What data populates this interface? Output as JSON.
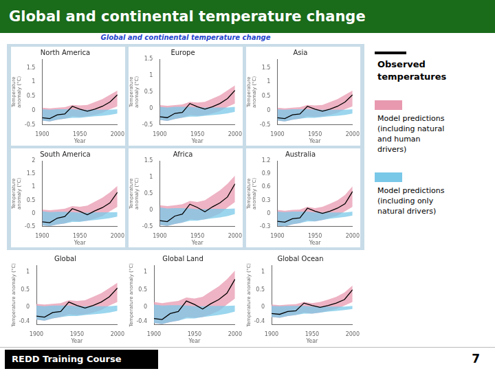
{
  "title": "Global and continental temperature change",
  "subtitle": "Global and continental temperature change",
  "annotations": [
    "REDD Training Course",
    "7"
  ],
  "chart_data": [
    {
      "type": "line",
      "title": "North America",
      "x_label": "Year",
      "y_label": "Temperature\nanomaly (°C)",
      "x": [
        1900,
        1910,
        1920,
        1930,
        1940,
        1950,
        1960,
        1970,
        1980,
        1990,
        2000
      ],
      "xlim": [
        1900,
        2000
      ],
      "xticks": [
        1900,
        1950,
        2000
      ],
      "ylim": [
        -0.5,
        1.8
      ],
      "yticks": [
        -0.5,
        0,
        0.5,
        1,
        1.5
      ],
      "grid": false,
      "series": [
        {
          "name": "Observed\ntemperatures",
          "color": "#000000",
          "values": [
            -0.25,
            -0.28,
            -0.15,
            -0.12,
            0.15,
            0.05,
            -0.02,
            0.05,
            0.15,
            0.3,
            0.55
          ]
        },
        {
          "name": "Model predictions\n(including natural\nand human\ndrivers)",
          "type": "band",
          "color": "#e899b0",
          "lower": [
            -0.35,
            -0.38,
            -0.32,
            -0.28,
            -0.2,
            -0.22,
            -0.2,
            -0.15,
            -0.08,
            0.05,
            0.15
          ],
          "upper": [
            0.1,
            0.08,
            0.1,
            0.12,
            0.2,
            0.18,
            0.2,
            0.3,
            0.4,
            0.55,
            0.7
          ]
        },
        {
          "name": "Model predictions\n(including only\nnatural drivers)",
          "type": "band",
          "color": "#7ac8e8",
          "lower": [
            -0.35,
            -0.38,
            -0.32,
            -0.28,
            -0.25,
            -0.25,
            -0.22,
            -0.2,
            -0.18,
            -0.15,
            -0.1
          ],
          "upper": [
            0.05,
            0.03,
            0.05,
            0.05,
            0.05,
            0.03,
            0.03,
            0.03,
            0.03,
            0.03,
            0.05
          ]
        }
      ]
    },
    {
      "type": "line",
      "title": "Europe",
      "x_label": "Year",
      "y_label": "Temperature\nanomaly (°C)",
      "x": [
        1900,
        1910,
        1920,
        1930,
        1940,
        1950,
        1960,
        1970,
        1980,
        1990,
        2000
      ],
      "xlim": [
        1900,
        2000
      ],
      "xticks": [
        1900,
        1950,
        2000
      ],
      "ylim": [
        -0.5,
        1.5
      ],
      "yticks": [
        -0.5,
        0,
        0.5,
        1,
        1.5
      ],
      "grid": false,
      "series": [
        {
          "name": "Observed\ntemperatures",
          "color": "#000000",
          "values": [
            -0.25,
            -0.28,
            -0.15,
            -0.12,
            0.15,
            0.05,
            -0.02,
            0.05,
            0.15,
            0.3,
            0.55
          ]
        },
        {
          "name": "Model predictions\n(including natural\nand human\ndrivers)",
          "type": "band",
          "color": "#e899b0",
          "lower": [
            -0.35,
            -0.38,
            -0.32,
            -0.28,
            -0.2,
            -0.22,
            -0.2,
            -0.15,
            -0.08,
            0.05,
            0.15
          ],
          "upper": [
            0.1,
            0.08,
            0.1,
            0.12,
            0.2,
            0.18,
            0.2,
            0.3,
            0.4,
            0.55,
            0.7
          ]
        },
        {
          "name": "Model predictions\n(including only\nnatural drivers)",
          "type": "band",
          "color": "#7ac8e8",
          "lower": [
            -0.35,
            -0.38,
            -0.32,
            -0.28,
            -0.25,
            -0.25,
            -0.22,
            -0.2,
            -0.18,
            -0.15,
            -0.1
          ],
          "upper": [
            0.05,
            0.03,
            0.05,
            0.05,
            0.05,
            0.03,
            0.03,
            0.03,
            0.03,
            0.03,
            0.05
          ]
        }
      ]
    },
    {
      "type": "line",
      "title": "Asia",
      "x_label": "Year",
      "y_label": "Temperature\nanomaly (°C)",
      "x": [
        1900,
        1910,
        1920,
        1930,
        1940,
        1950,
        1960,
        1970,
        1980,
        1990,
        2000
      ],
      "xlim": [
        1900,
        2000
      ],
      "xticks": [
        1900,
        1950,
        2000
      ],
      "ylim": [
        -0.5,
        1.8
      ],
      "yticks": [
        -0.5,
        0,
        0.5,
        1,
        1.5
      ],
      "grid": false,
      "series": [
        {
          "name": "Observed\ntemperatures",
          "color": "#000000",
          "values": [
            -0.25,
            -0.28,
            -0.15,
            -0.12,
            0.15,
            0.05,
            -0.02,
            0.05,
            0.15,
            0.3,
            0.55
          ]
        },
        {
          "name": "Model predictions\n(including natural\nand human\ndrivers)",
          "type": "band",
          "color": "#e899b0",
          "lower": [
            -0.35,
            -0.38,
            -0.32,
            -0.28,
            -0.2,
            -0.22,
            -0.2,
            -0.15,
            -0.08,
            0.05,
            0.15
          ],
          "upper": [
            0.1,
            0.08,
            0.1,
            0.12,
            0.2,
            0.18,
            0.2,
            0.3,
            0.4,
            0.55,
            0.7
          ]
        },
        {
          "name": "Model predictions\n(including only\nnatural drivers)",
          "type": "band",
          "color": "#7ac8e8",
          "lower": [
            -0.35,
            -0.38,
            -0.32,
            -0.28,
            -0.25,
            -0.25,
            -0.22,
            -0.2,
            -0.18,
            -0.15,
            -0.1
          ],
          "upper": [
            0.05,
            0.03,
            0.05,
            0.05,
            0.05,
            0.03,
            0.03,
            0.03,
            0.03,
            0.03,
            0.05
          ]
        }
      ]
    },
    {
      "type": "line",
      "title": "South America",
      "x_label": "Year",
      "y_label": "Temperature\nanomaly (°C)",
      "x": [
        1900,
        1910,
        1920,
        1930,
        1940,
        1950,
        1960,
        1970,
        1980,
        1990,
        2000
      ],
      "xlim": [
        1900,
        2000
      ],
      "xticks": [
        1900,
        1950,
        2000
      ],
      "ylim": [
        -0.5,
        2.0
      ],
      "yticks": [
        -0.5,
        0,
        0.5,
        1,
        1.5,
        2
      ],
      "grid": false,
      "series": [
        {
          "name": "Observed\ntemperatures",
          "color": "#000000",
          "values": [
            -0.32,
            -0.35,
            -0.18,
            -0.12,
            0.18,
            0.08,
            -0.05,
            0.1,
            0.22,
            0.4,
            0.8
          ]
        },
        {
          "name": "Model predictions\n(including natural\nand human\ndrivers)",
          "type": "band",
          "color": "#e899b0",
          "lower": [
            -0.45,
            -0.48,
            -0.42,
            -0.38,
            -0.28,
            -0.3,
            -0.28,
            -0.2,
            -0.1,
            0.08,
            0.25
          ],
          "upper": [
            0.15,
            0.12,
            0.15,
            0.18,
            0.28,
            0.25,
            0.3,
            0.45,
            0.6,
            0.8,
            1.05
          ]
        },
        {
          "name": "Model predictions\n(including only\nnatural drivers)",
          "type": "band",
          "color": "#7ac8e8",
          "lower": [
            -0.45,
            -0.48,
            -0.42,
            -0.38,
            -0.32,
            -0.32,
            -0.28,
            -0.25,
            -0.22,
            -0.18,
            -0.12
          ],
          "upper": [
            0.08,
            0.05,
            0.06,
            0.06,
            0.05,
            0.03,
            0.03,
            0.04,
            0.04,
            0.04,
            0.05
          ]
        }
      ]
    },
    {
      "type": "line",
      "title": "Africa",
      "x_label": "Year",
      "y_label": "Temperature\nanomaly (°C)",
      "x": [
        1900,
        1910,
        1920,
        1930,
        1940,
        1950,
        1960,
        1970,
        1980,
        1990,
        2000
      ],
      "xlim": [
        1900,
        2000
      ],
      "xticks": [
        1900,
        1950,
        2000
      ],
      "ylim": [
        -0.5,
        1.5
      ],
      "yticks": [
        -0.5,
        0,
        0.5,
        1,
        1.5
      ],
      "grid": false,
      "series": [
        {
          "name": "Observed\ntemperatures",
          "color": "#000000",
          "values": [
            -0.32,
            -0.35,
            -0.18,
            -0.12,
            0.18,
            0.08,
            -0.05,
            0.1,
            0.22,
            0.4,
            0.8
          ]
        },
        {
          "name": "Model predictions\n(including natural\nand human\ndrivers)",
          "type": "band",
          "color": "#e899b0",
          "lower": [
            -0.45,
            -0.48,
            -0.42,
            -0.38,
            -0.28,
            -0.3,
            -0.28,
            -0.2,
            -0.1,
            0.08,
            0.25
          ],
          "upper": [
            0.15,
            0.12,
            0.15,
            0.18,
            0.28,
            0.25,
            0.3,
            0.45,
            0.6,
            0.8,
            1.05
          ]
        },
        {
          "name": "Model predictions\n(including only\nnatural drivers)",
          "type": "band",
          "color": "#7ac8e8",
          "lower": [
            -0.45,
            -0.48,
            -0.42,
            -0.38,
            -0.32,
            -0.32,
            -0.28,
            -0.25,
            -0.22,
            -0.18,
            -0.12
          ],
          "upper": [
            0.08,
            0.05,
            0.06,
            0.06,
            0.05,
            0.03,
            0.03,
            0.04,
            0.04,
            0.04,
            0.05
          ]
        }
      ]
    },
    {
      "type": "line",
      "title": "Australia",
      "x_label": "Year",
      "y_label": "Temperature\nanomaly (°C)",
      "x": [
        1900,
        1910,
        1920,
        1930,
        1940,
        1950,
        1960,
        1970,
        1980,
        1990,
        2000
      ],
      "xlim": [
        1900,
        2000
      ],
      "xticks": [
        1900,
        1950,
        2000
      ],
      "ylim": [
        -0.3,
        1.2
      ],
      "yticks": [
        -0.3,
        0,
        0.3,
        0.6,
        0.9,
        1.2
      ],
      "grid": false,
      "series": [
        {
          "name": "Observed\ntemperatures",
          "color": "#000000",
          "values": [
            -0.18,
            -0.2,
            -0.12,
            -0.1,
            0.12,
            0.05,
            0.0,
            0.05,
            0.12,
            0.22,
            0.5
          ]
        },
        {
          "name": "Model predictions\n(including natural\nand human\ndrivers)",
          "type": "band",
          "color": "#e899b0",
          "lower": [
            -0.28,
            -0.3,
            -0.25,
            -0.22,
            -0.15,
            -0.18,
            -0.15,
            -0.1,
            -0.05,
            0.05,
            0.15
          ],
          "upper": [
            0.08,
            0.06,
            0.08,
            0.09,
            0.15,
            0.12,
            0.15,
            0.22,
            0.3,
            0.42,
            0.62
          ]
        },
        {
          "name": "Model predictions\n(including only\nnatural drivers)",
          "type": "band",
          "color": "#7ac8e8",
          "lower": [
            -0.28,
            -0.3,
            -0.25,
            -0.22,
            -0.18,
            -0.18,
            -0.15,
            -0.12,
            -0.1,
            -0.08,
            -0.05
          ],
          "upper": [
            0.04,
            0.03,
            0.04,
            0.04,
            0.04,
            0.02,
            0.02,
            0.02,
            0.02,
            0.02,
            0.04
          ]
        }
      ]
    },
    {
      "type": "line",
      "title": "Global",
      "x_label": "Year",
      "y_label": "Temperature anomaly (°C)",
      "x": [
        1900,
        1910,
        1920,
        1930,
        1940,
        1950,
        1960,
        1970,
        1980,
        1990,
        2000
      ],
      "xlim": [
        1900,
        2000
      ],
      "xticks": [
        1900,
        1950,
        2000
      ],
      "ylim": [
        -0.5,
        1.2
      ],
      "yticks": [
        -0.4,
        0.0,
        0.5,
        1.0
      ],
      "grid": false,
      "series": [
        {
          "name": "Observed\ntemperatures",
          "color": "#000000",
          "values": [
            -0.25,
            -0.28,
            -0.15,
            -0.12,
            0.15,
            0.05,
            -0.02,
            0.05,
            0.15,
            0.3,
            0.55
          ]
        },
        {
          "name": "Model predictions\n(including natural\nand human\ndrivers)",
          "type": "band",
          "color": "#e899b0",
          "lower": [
            -0.35,
            -0.38,
            -0.32,
            -0.28,
            -0.2,
            -0.22,
            -0.2,
            -0.15,
            -0.08,
            0.05,
            0.15
          ],
          "upper": [
            0.1,
            0.08,
            0.1,
            0.12,
            0.2,
            0.18,
            0.2,
            0.3,
            0.4,
            0.55,
            0.7
          ]
        },
        {
          "name": "Model predictions\n(including only\nnatural drivers)",
          "type": "band",
          "color": "#7ac8e8",
          "lower": [
            -0.35,
            -0.38,
            -0.32,
            -0.28,
            -0.25,
            -0.25,
            -0.22,
            -0.2,
            -0.18,
            -0.15,
            -0.1
          ],
          "upper": [
            0.05,
            0.03,
            0.05,
            0.05,
            0.05,
            0.03,
            0.03,
            0.03,
            0.03,
            0.03,
            0.05
          ]
        }
      ]
    },
    {
      "type": "line",
      "title": "Global Land",
      "x_label": "Year",
      "y_label": "Temperature anomaly (°C)",
      "x": [
        1900,
        1910,
        1920,
        1930,
        1940,
        1950,
        1960,
        1970,
        1980,
        1990,
        2000
      ],
      "xlim": [
        1900,
        2000
      ],
      "xticks": [
        1900,
        1950,
        2000
      ],
      "ylim": [
        -0.5,
        1.2
      ],
      "yticks": [
        -0.4,
        0.0,
        0.5,
        1.0
      ],
      "grid": false,
      "series": [
        {
          "name": "Observed\ntemperatures",
          "color": "#000000",
          "values": [
            -0.32,
            -0.35,
            -0.18,
            -0.12,
            0.18,
            0.08,
            -0.05,
            0.1,
            0.22,
            0.4,
            0.8
          ]
        },
        {
          "name": "Model predictions\n(including natural\nand human\ndrivers)",
          "type": "band",
          "color": "#e899b0",
          "lower": [
            -0.45,
            -0.48,
            -0.42,
            -0.38,
            -0.28,
            -0.3,
            -0.28,
            -0.2,
            -0.1,
            0.08,
            0.25
          ],
          "upper": [
            0.15,
            0.12,
            0.15,
            0.18,
            0.28,
            0.25,
            0.3,
            0.45,
            0.6,
            0.8,
            1.05
          ]
        },
        {
          "name": "Model predictions\n(including only\nnatural drivers)",
          "type": "band",
          "color": "#7ac8e8",
          "lower": [
            -0.45,
            -0.48,
            -0.42,
            -0.38,
            -0.32,
            -0.32,
            -0.28,
            -0.25,
            -0.22,
            -0.18,
            -0.12
          ],
          "upper": [
            0.08,
            0.05,
            0.06,
            0.06,
            0.05,
            0.03,
            0.03,
            0.04,
            0.04,
            0.04,
            0.05
          ]
        }
      ]
    },
    {
      "type": "line",
      "title": "Global Ocean",
      "x_label": "Year",
      "y_label": "Temperature anomaly (°C)",
      "x": [
        1900,
        1910,
        1920,
        1930,
        1940,
        1950,
        1960,
        1970,
        1980,
        1990,
        2000
      ],
      "xlim": [
        1900,
        2000
      ],
      "xticks": [
        1900,
        1950,
        2000
      ],
      "ylim": [
        -0.5,
        1.2
      ],
      "yticks": [
        -0.4,
        0.0,
        0.5,
        1.0
      ],
      "grid": false,
      "series": [
        {
          "name": "Observed\ntemperatures",
          "color": "#000000",
          "values": [
            -0.18,
            -0.2,
            -0.12,
            -0.1,
            0.12,
            0.05,
            0.0,
            0.05,
            0.12,
            0.22,
            0.5
          ]
        },
        {
          "name": "Model predictions\n(including natural\nand human\ndrivers)",
          "type": "band",
          "color": "#e899b0",
          "lower": [
            -0.28,
            -0.3,
            -0.25,
            -0.22,
            -0.15,
            -0.18,
            -0.15,
            -0.1,
            -0.05,
            0.05,
            0.15
          ],
          "upper": [
            0.08,
            0.06,
            0.08,
            0.09,
            0.15,
            0.12,
            0.15,
            0.22,
            0.3,
            0.42,
            0.62
          ]
        },
        {
          "name": "Model predictions\n(including only\nnatural drivers)",
          "type": "band",
          "color": "#7ac8e8",
          "lower": [
            -0.28,
            -0.3,
            -0.25,
            -0.22,
            -0.18,
            -0.18,
            -0.15,
            -0.12,
            -0.1,
            -0.08,
            -0.05
          ],
          "upper": [
            0.04,
            0.03,
            0.04,
            0.04,
            0.04,
            0.02,
            0.02,
            0.02,
            0.02,
            0.02,
            0.04
          ]
        }
      ]
    }
  ]
}
